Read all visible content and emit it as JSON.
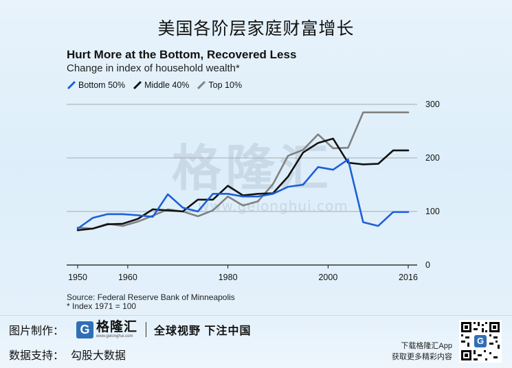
{
  "page_title": "美国各阶层家庭财富增长",
  "watermark": {
    "text": "格隆汇",
    "url": "www.gelonghui.com"
  },
  "chart_data": {
    "type": "line",
    "title": "Hurt More at the Bottom, Recovered Less",
    "subtitle": "Change in index of household wealth*",
    "xlim": [
      1950,
      2016
    ],
    "ylim": [
      0,
      300
    ],
    "x_ticks": [
      "1950",
      "1960",
      "1980",
      "2000",
      "2016"
    ],
    "x_tick_values": [
      1950,
      1960,
      1980,
      2000,
      2016
    ],
    "y_ticks": [
      "0",
      "100",
      "200",
      "300"
    ],
    "y_tick_values": [
      0,
      100,
      200,
      300
    ],
    "grid": "horizontal",
    "y_axis_side": "right",
    "legend_position": "top-left",
    "x": [
      1950,
      1953,
      1956,
      1959,
      1962,
      1965,
      1968,
      1971,
      1974,
      1977,
      1980,
      1983,
      1986,
      1989,
      1992,
      1995,
      1998,
      2001,
      2004,
      2007,
      2010,
      2013,
      2016
    ],
    "series": [
      {
        "name": "Bottom 50%",
        "color": "#1b5fd8",
        "values": [
          68,
          88,
          95,
          95,
          93,
          90,
          132,
          107,
          100,
          133,
          133,
          128,
          128,
          133,
          146,
          150,
          183,
          178,
          197,
          80,
          73,
          99,
          99
        ]
      },
      {
        "name": "Middle 40%",
        "color": "#111111",
        "values": [
          65,
          68,
          76,
          77,
          86,
          104,
          102,
          100,
          122,
          122,
          148,
          130,
          133,
          134,
          165,
          210,
          228,
          236,
          191,
          188,
          189,
          214,
          214
        ]
      },
      {
        "name": "Top 10%",
        "color": "#808080",
        "values": [
          70,
          68,
          77,
          73,
          81,
          92,
          104,
          100,
          91,
          102,
          128,
          111,
          119,
          151,
          204,
          215,
          244,
          218,
          219,
          285,
          285,
          285,
          285
        ]
      }
    ],
    "source": "Source: Federal Reserve Bank of Minneapolis",
    "footnote": "* Index 1971 = 100"
  },
  "footer": {
    "made_label": "图片制作：",
    "brand_mark": "G",
    "brand_name": "格隆汇",
    "brand_url": "www.gelonghui.com",
    "slogan": "全球视野 下注中国",
    "data_label": "数据支持：",
    "data_value": "勾股大数据",
    "app_line1": "下载格隆汇App",
    "app_line2": "获取更多精彩内容"
  }
}
